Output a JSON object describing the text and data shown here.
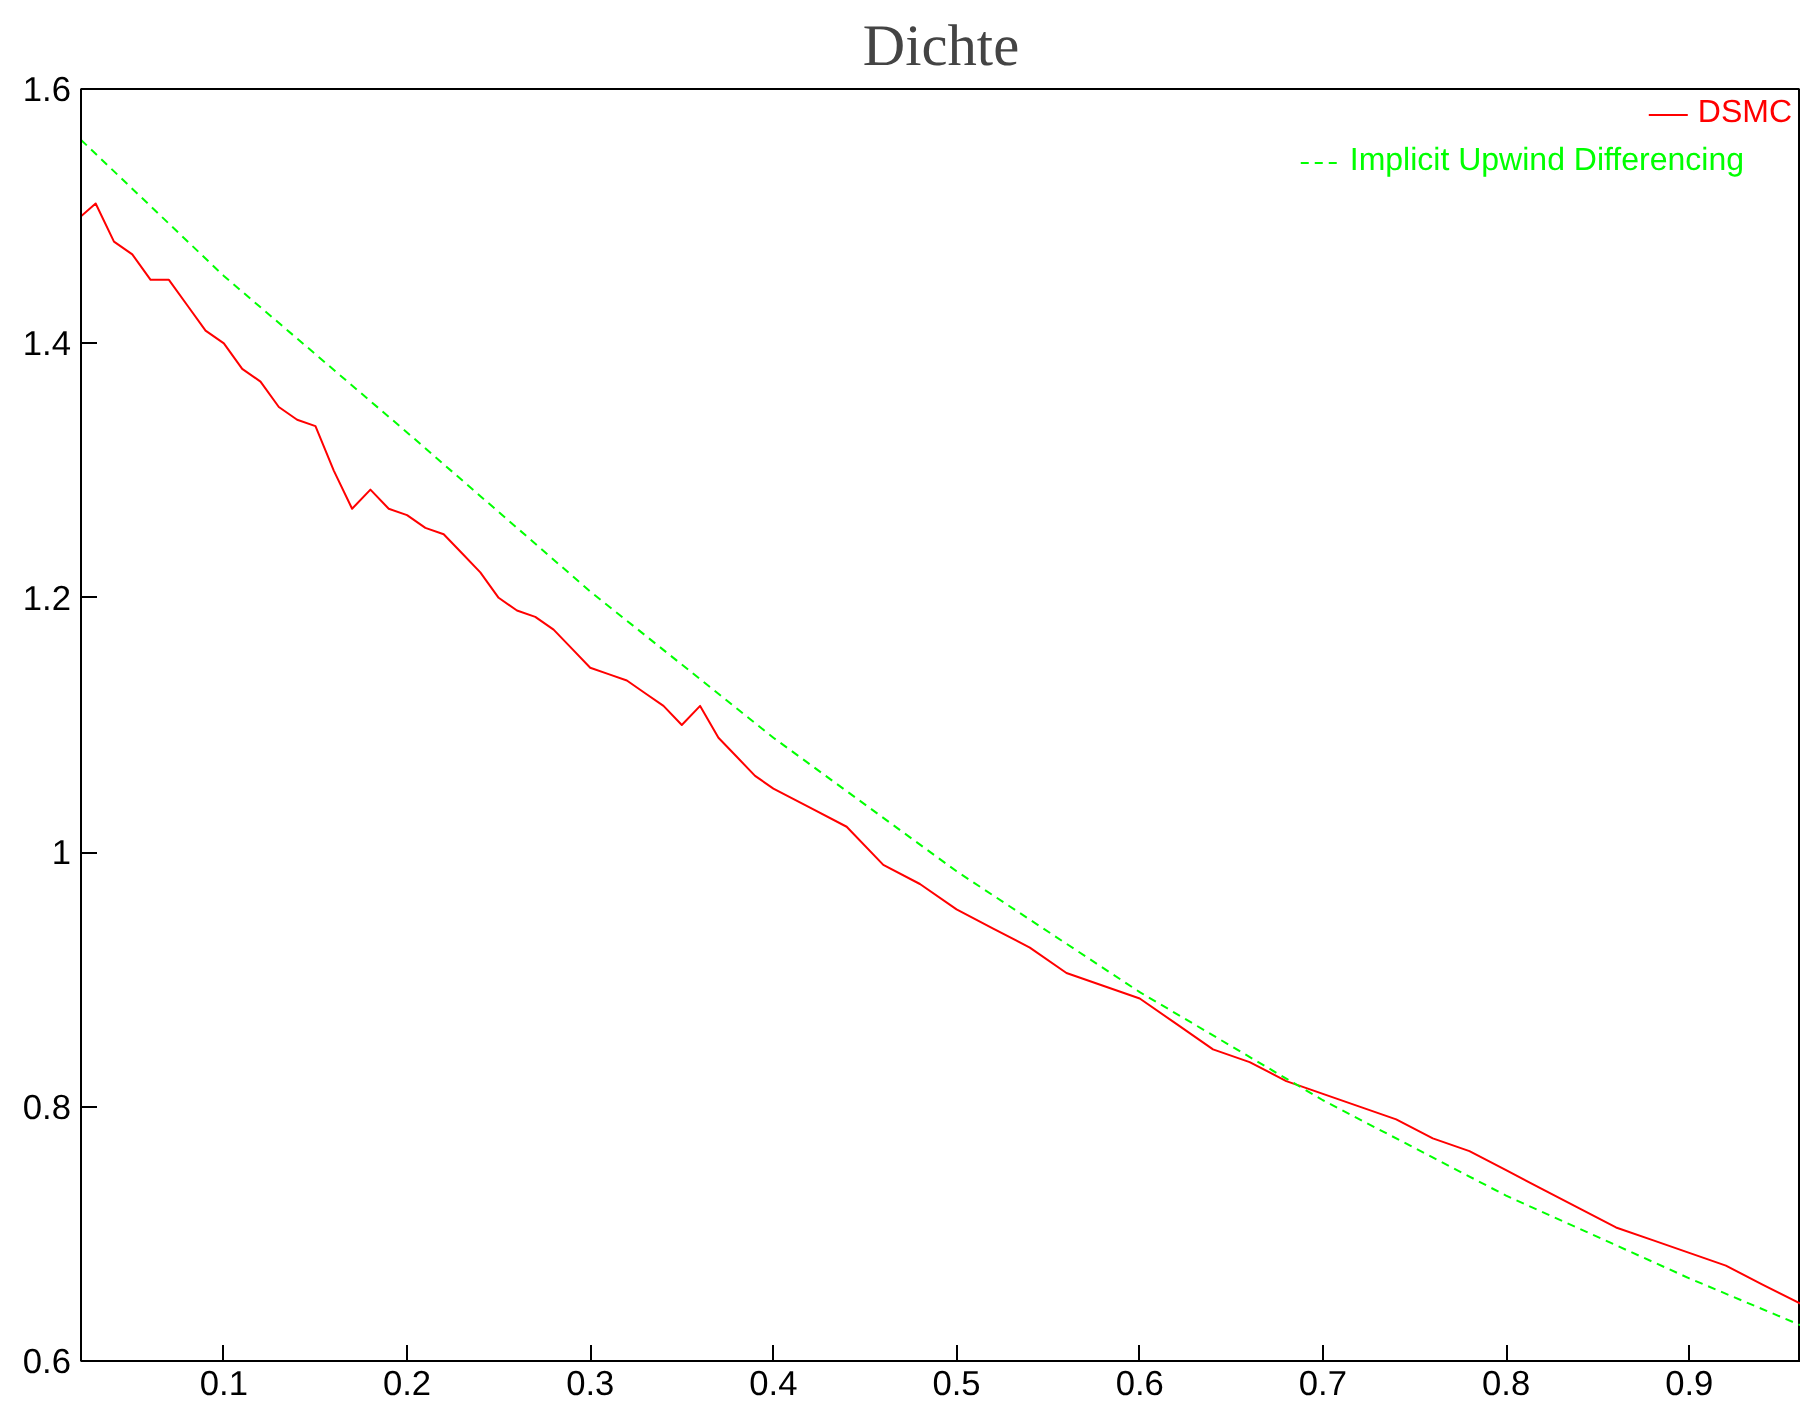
{
  "chart_data": {
    "type": "line",
    "title": "Dichte",
    "xlim": [
      0.022,
      0.961
    ],
    "ylim": [
      0.6,
      1.6
    ],
    "xticks": [
      0.1,
      0.2,
      0.3,
      0.4,
      0.5,
      0.6,
      0.7,
      0.8,
      0.9
    ],
    "yticks": [
      0.6,
      0.8,
      1,
      1.2,
      1.4,
      1.6
    ],
    "grid": false,
    "legend": "top right",
    "series": [
      {
        "name": "DSMC",
        "color": "#ff0000",
        "line_style": "solid",
        "x": [
          0.022,
          0.03,
          0.04,
          0.05,
          0.06,
          0.07,
          0.08,
          0.09,
          0.1,
          0.11,
          0.12,
          0.13,
          0.14,
          0.15,
          0.16,
          0.17,
          0.18,
          0.19,
          0.2,
          0.21,
          0.22,
          0.23,
          0.24,
          0.25,
          0.26,
          0.27,
          0.28,
          0.29,
          0.3,
          0.31,
          0.32,
          0.33,
          0.34,
          0.35,
          0.36,
          0.37,
          0.38,
          0.39,
          0.4,
          0.42,
          0.44,
          0.46,
          0.48,
          0.5,
          0.52,
          0.54,
          0.56,
          0.58,
          0.6,
          0.62,
          0.64,
          0.66,
          0.68,
          0.7,
          0.72,
          0.74,
          0.76,
          0.78,
          0.8,
          0.82,
          0.84,
          0.86,
          0.88,
          0.9,
          0.92,
          0.94,
          0.961
        ],
        "values": [
          1.5,
          1.51,
          1.48,
          1.47,
          1.45,
          1.45,
          1.43,
          1.41,
          1.4,
          1.38,
          1.37,
          1.35,
          1.34,
          1.335,
          1.3,
          1.27,
          1.285,
          1.27,
          1.265,
          1.255,
          1.25,
          1.235,
          1.22,
          1.2,
          1.19,
          1.185,
          1.175,
          1.16,
          1.145,
          1.14,
          1.135,
          1.125,
          1.115,
          1.1,
          1.115,
          1.09,
          1.075,
          1.06,
          1.05,
          1.035,
          1.02,
          0.99,
          0.975,
          0.955,
          0.94,
          0.925,
          0.905,
          0.895,
          0.885,
          0.865,
          0.845,
          0.835,
          0.82,
          0.81,
          0.8,
          0.79,
          0.775,
          0.765,
          0.75,
          0.735,
          0.72,
          0.705,
          0.695,
          0.685,
          0.675,
          0.66,
          0.645
        ]
      },
      {
        "name": "Implicit Upwind Differencing",
        "color": "#00ff00",
        "line_style": "dashed",
        "x": [
          0.022,
          0.1,
          0.2,
          0.3,
          0.4,
          0.5,
          0.6,
          0.7,
          0.8,
          0.9,
          0.961
        ],
        "values": [
          1.56,
          1.453,
          1.33,
          1.205,
          1.09,
          0.985,
          0.89,
          0.805,
          0.73,
          0.665,
          0.628
        ]
      }
    ]
  }
}
